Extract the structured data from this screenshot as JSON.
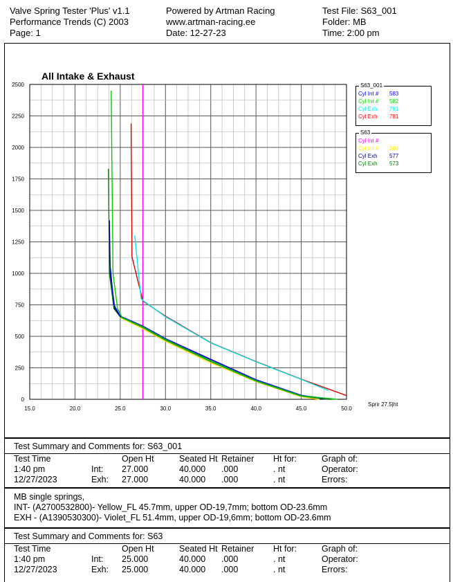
{
  "header": {
    "col1": [
      "Valve Spring Tester 'Plus' v1.1",
      "Performance Trends (C) 2003",
      "Page:  1"
    ],
    "col2": [
      "Powered by Artman Racing",
      "www.artman-racing.ee",
      "Date: 12-27-23"
    ],
    "col3": [
      "Test File: S63_001",
      "Folder: MB",
      "Time: 2:00 pm"
    ]
  },
  "legend": [
    {
      "title": "S63_001",
      "items": [
        {
          "label": "Cyl Int #",
          "value": "583",
          "color": "#0000ff"
        },
        {
          "label": "Cyl Int #",
          "value": "582",
          "color": "#00dd00"
        },
        {
          "label": "Cyl Exh",
          "value": "781",
          "color": "#00e5e5"
        },
        {
          "label": "Cyl Exh",
          "value": "781",
          "color": "#ff0000"
        }
      ]
    },
    {
      "title": "S63",
      "items": [
        {
          "label": "Cyl Int #",
          "value": "",
          "color": "#ff00ff"
        },
        {
          "label": "Cyl Int #",
          "value": "568",
          "color": "#ffee00"
        },
        {
          "label": "Cyl Exh",
          "value": "577",
          "color": "#000080"
        },
        {
          "label": "Cyl Exh",
          "value": "573",
          "color": "#008000"
        }
      ]
    }
  ],
  "cursor_label": "Sprir   27.5|ht",
  "chart_data": {
    "type": "line",
    "title": "All Intake & Exhaust",
    "xlabel": "",
    "ylabel": "",
    "xlim": [
      15,
      50
    ],
    "ylim": [
      0,
      2500
    ],
    "xticks": [
      "15.0",
      "20.0",
      "25.0",
      "30.0",
      "35.0",
      "40.0",
      "45.0",
      "50.0"
    ],
    "yticks": [
      "0",
      "250",
      "500",
      "750",
      "1000",
      "1250",
      "1500",
      "1750",
      "2000",
      "2250",
      "2500"
    ],
    "cursor_x": 27.5,
    "cursor_color": "#ff00ff",
    "series": [
      {
        "name": "S63_001 Cyl Exh 781 (red)",
        "color": "#dd0000",
        "points": [
          [
            26.2,
            2190
          ],
          [
            26.3,
            1130
          ],
          [
            27.5,
            780
          ],
          [
            30,
            660
          ],
          [
            35,
            450
          ],
          [
            40,
            300
          ],
          [
            45,
            160
          ],
          [
            50,
            30
          ]
        ]
      },
      {
        "name": "S63_001 Cyl Exh 781 (cyan)",
        "color": "#00e5e5",
        "points": [
          [
            26.6,
            1300
          ],
          [
            27.3,
            800
          ],
          [
            27.6,
            780
          ],
          [
            30,
            655
          ],
          [
            35,
            448
          ],
          [
            40,
            298
          ],
          [
            45,
            158
          ],
          [
            48,
            70
          ]
        ]
      },
      {
        "name": "S63 Cyl Int 568",
        "color": "#ffdd00",
        "points": [
          [
            23.9,
            1000
          ],
          [
            24.4,
            720
          ],
          [
            25,
            650
          ],
          [
            27.5,
            560
          ],
          [
            30,
            460
          ],
          [
            35,
            290
          ],
          [
            40,
            140
          ],
          [
            45,
            20
          ],
          [
            47,
            0
          ]
        ]
      },
      {
        "name": "S63 Cyl Exh 573",
        "color": "#008000",
        "points": [
          [
            23.7,
            1830
          ],
          [
            23.8,
            1000
          ],
          [
            24.3,
            720
          ],
          [
            25,
            655
          ],
          [
            27.5,
            570
          ],
          [
            30,
            470
          ],
          [
            35,
            300
          ],
          [
            40,
            145
          ],
          [
            45,
            25
          ],
          [
            48,
            0
          ]
        ]
      },
      {
        "name": "S63 Cyl Exh 577",
        "color": "#000080",
        "points": [
          [
            23.8,
            1420
          ],
          [
            23.9,
            1000
          ],
          [
            24.4,
            720
          ],
          [
            25,
            660
          ],
          [
            27.5,
            580
          ],
          [
            30,
            480
          ],
          [
            35,
            315
          ],
          [
            40,
            155
          ],
          [
            45,
            30
          ],
          [
            48,
            5
          ]
        ]
      },
      {
        "name": "S63_001 Cyl Int 583",
        "color": "#0000ff",
        "points": [
          [
            23.9,
            1050
          ],
          [
            24.3,
            750
          ],
          [
            25,
            660
          ],
          [
            27.5,
            582
          ],
          [
            30,
            482
          ],
          [
            35,
            318
          ],
          [
            40,
            156
          ],
          [
            45,
            32
          ],
          [
            47.5,
            5
          ]
        ]
      },
      {
        "name": "S63_001 Cyl Int 582",
        "color": "#00cc00",
        "points": [
          [
            24.0,
            2450
          ],
          [
            24.2,
            1000
          ],
          [
            24.7,
            720
          ],
          [
            25.2,
            650
          ],
          [
            27.5,
            575
          ],
          [
            30,
            475
          ],
          [
            35,
            305
          ],
          [
            40,
            148
          ],
          [
            45,
            27
          ],
          [
            49,
            0
          ]
        ]
      }
    ]
  },
  "summary1": {
    "title": "Test Summary and Comments for:   S63_001",
    "headers": [
      "Test Time",
      "Open Ht",
      "Seated Ht",
      "Retainer",
      "Ht for:",
      "Graph of:"
    ],
    "time": "1:40 pm",
    "date": "12/27/2023",
    "int": {
      "label": "Int:",
      "open": "27.000",
      "seated": "40.000",
      "ret": ".000",
      "ht": ". nt"
    },
    "exh": {
      "label": "Exh:",
      "open": "27.000",
      "seated": "40.000",
      "ret": ".000",
      "ht": ". nt"
    },
    "operator": "Operator:",
    "errors": "Errors:",
    "comments": [
      "MB single springs,",
      "INT- (A2700532800)- Yellow_FL 45.7mm, upper OD-19,7mm; bottom OD-23.6mm",
      "EXH - (A1390530300)- Violet_FL 51.4mm, upper OD-19,6mm; bottom OD-23.6mm"
    ]
  },
  "summary2": {
    "title": "Test Summary and Comments for:   S63",
    "headers": [
      "Test Time",
      "Open Ht",
      "Seated Ht",
      "Retainer",
      "Ht for:",
      "Graph of:"
    ],
    "time": "1:40 pm",
    "date": "12/27/2023",
    "int": {
      "label": "Int:",
      "open": "25.000",
      "seated": "40.000",
      "ret": ".000",
      "ht": ". nt"
    },
    "exh": {
      "label": "Exh:",
      "open": "25.000",
      "seated": "40.000",
      "ret": ".000",
      "ht": ". nt"
    },
    "operator": "Operator:",
    "errors": "Errors:"
  }
}
